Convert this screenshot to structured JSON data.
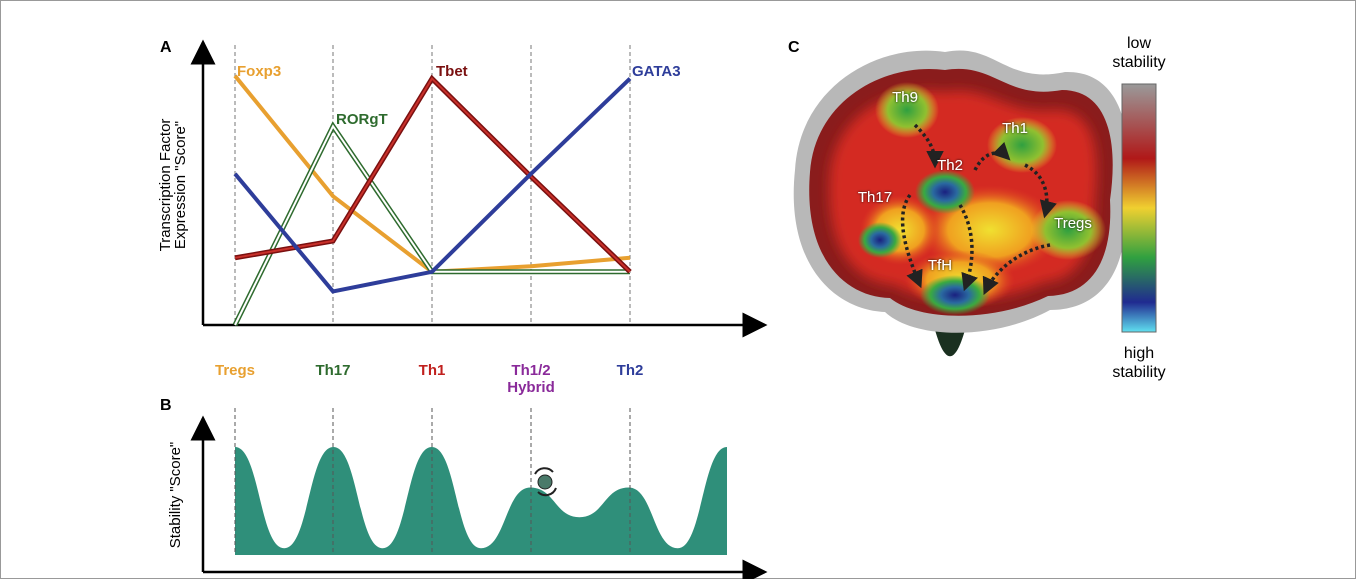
{
  "chart_data": [
    {
      "type": "line",
      "panel": "A",
      "y_label": [
        "Transcription Factor",
        "Expression \"Score\""
      ],
      "categories": [
        "Tregs",
        "Th17",
        "Th1",
        "Th1/2 Hybrid",
        "Th2"
      ],
      "category_colors": [
        "#e8a030",
        "#2e6b2e",
        "#c0201e",
        "#8a2a9a",
        "#2e3d9a"
      ],
      "ylim": [
        0,
        100
      ],
      "series": [
        {
          "name": "Foxp3",
          "color": "#e8a030",
          "values": [
            89,
            46,
            19,
            21,
            24
          ]
        },
        {
          "name": "RORgT",
          "color": "#2e6b2e",
          "inner_color": "#ffffff",
          "values": [
            0,
            71,
            19,
            19,
            19
          ]
        },
        {
          "name": "Tbet",
          "color": "#7a1010",
          "inner_color": "#c8302a",
          "values": [
            24,
            30,
            88,
            53,
            19
          ]
        },
        {
          "name": "GATA3",
          "color": "#2e3d9a",
          "values": [
            54,
            12,
            19,
            54,
            88
          ]
        }
      ]
    },
    {
      "type": "area",
      "panel": "B",
      "y_label": "Stability \"Score\"",
      "color": "#2f8f7a",
      "ylim": [
        0,
        100
      ],
      "values": [
        80,
        5,
        80,
        5,
        80,
        5,
        50,
        28,
        50,
        5,
        80
      ]
    }
  ],
  "landscape": {
    "panel": "C",
    "states": [
      "Th9",
      "Th1",
      "Th2",
      "Th17",
      "Tregs",
      "TfH"
    ],
    "colorbar": {
      "top": [
        "low",
        "stability"
      ],
      "bottom": [
        "high",
        "stability"
      ]
    }
  }
}
